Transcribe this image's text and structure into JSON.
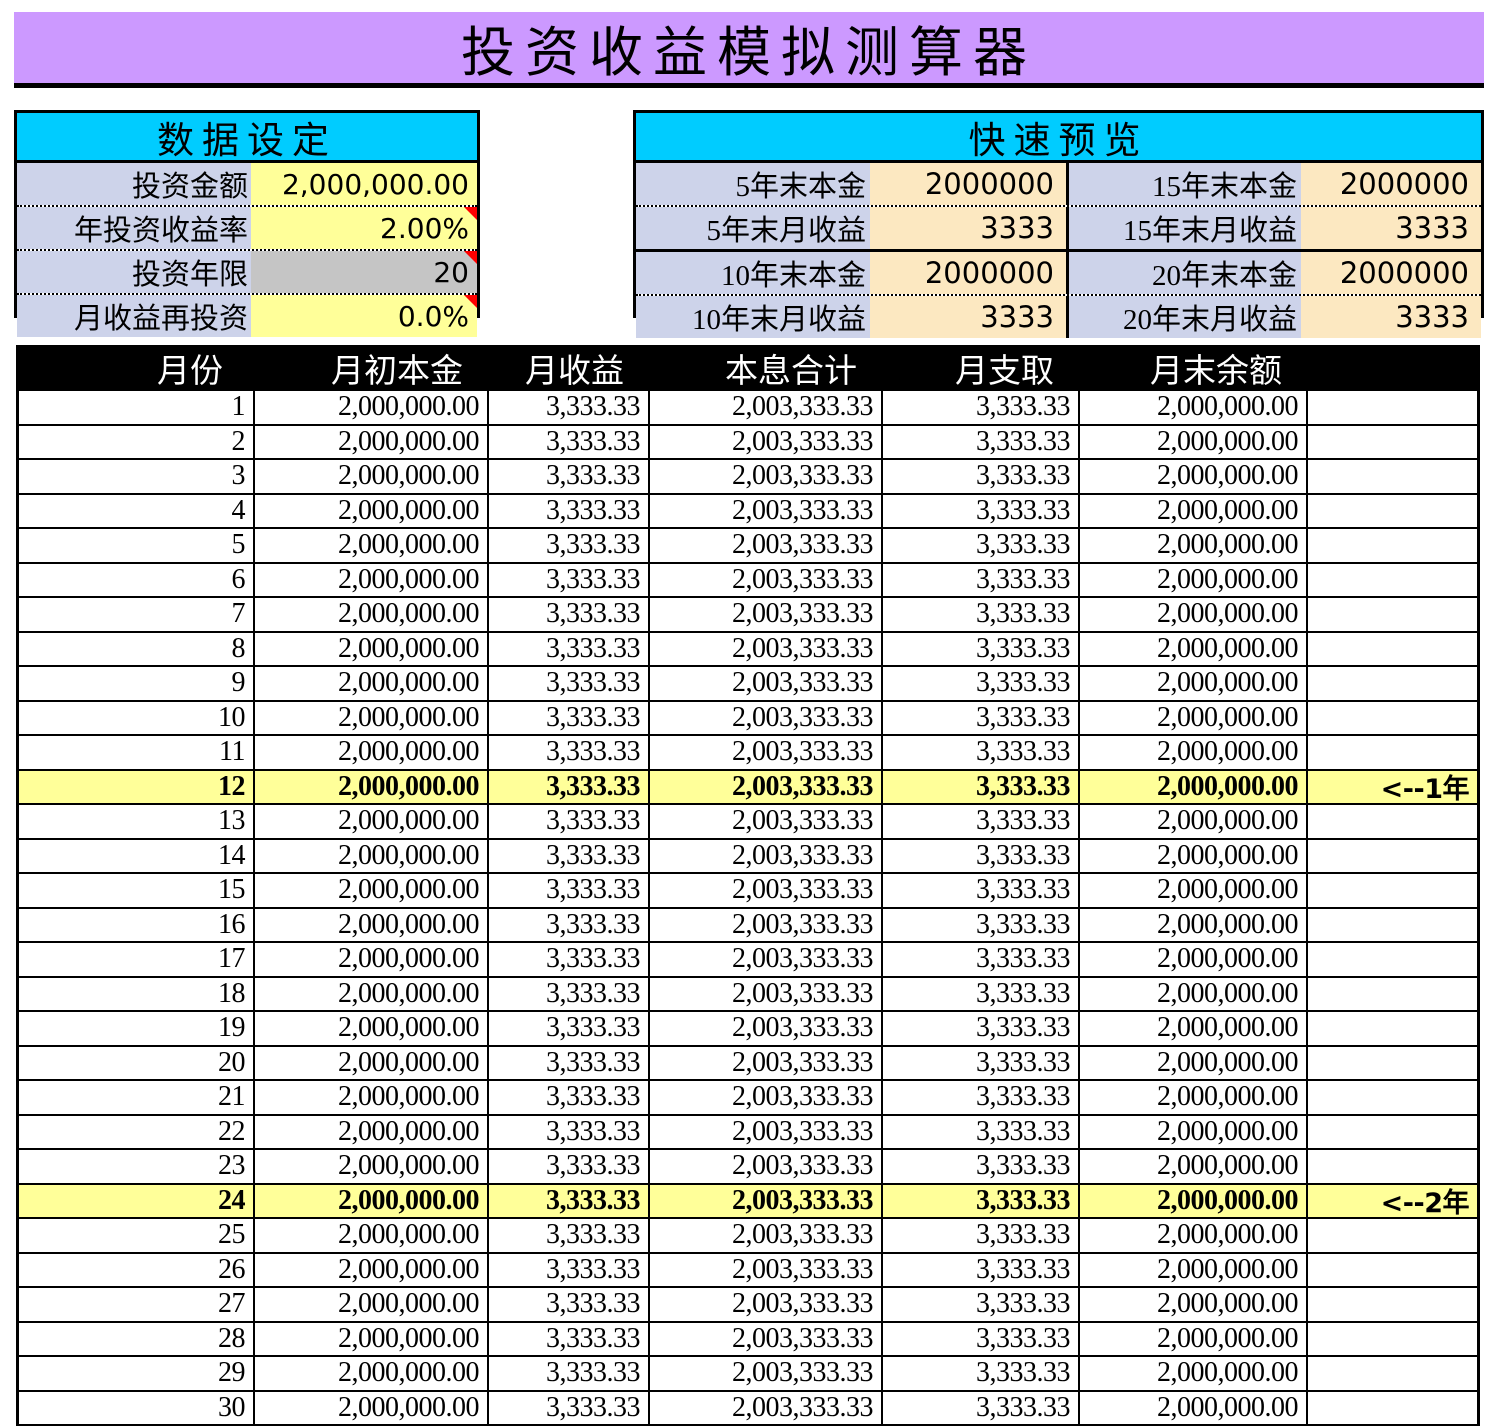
{
  "title": "投资收益模拟测算器",
  "colors": {
    "title_bg": "#CC99FF",
    "section_header_bg": "#00CCFF",
    "label_bg": "#CDD3EA",
    "input_yellow": "#FFFF99",
    "input_gray": "#C5C5C5",
    "preview_value_bg": "#FCE8C1",
    "highlight_row_bg": "#FFFF99",
    "comment_marker": "#FF0000",
    "table_header_bg": "#000000",
    "table_header_text": "#FFFFFF"
  },
  "settings": {
    "header": "数据设定",
    "rows": [
      {
        "label": "投资金额",
        "value": "2,000,000.00",
        "style": "yellow",
        "comment": false
      },
      {
        "label": "年投资收益率",
        "value": "2.00%",
        "style": "yellow",
        "comment": true
      },
      {
        "label": "投资年限",
        "value": "20",
        "style": "gray",
        "comment": true
      },
      {
        "label": "月收益再投资",
        "value": "0.0%",
        "style": "yellow",
        "comment": true
      }
    ]
  },
  "preview": {
    "header": "快速预览",
    "rows": [
      {
        "left": {
          "label": "5年末本金",
          "value": "2000000"
        },
        "right": {
          "label": "15年末本金",
          "value": "2000000"
        },
        "divider": "none"
      },
      {
        "left": {
          "label": "5年末月收益",
          "value": "3333"
        },
        "right": {
          "label": "15年末月收益",
          "value": "3333"
        },
        "divider": "dotted"
      },
      {
        "left": {
          "label": "10年末本金",
          "value": "2000000"
        },
        "right": {
          "label": "20年末本金",
          "value": "2000000"
        },
        "divider": "solid"
      },
      {
        "left": {
          "label": "10年末月收益",
          "value": "3333"
        },
        "right": {
          "label": "20年末月收益",
          "value": "3333"
        },
        "divider": "dotted"
      }
    ]
  },
  "table": {
    "columns": [
      "月份",
      "月初本金",
      "月收益",
      "本息合计",
      "月支取",
      "月末余额",
      ""
    ],
    "rows": [
      {
        "month": "1",
        "principal": "2,000,000.00",
        "income": "3,333.33",
        "total": "2,003,333.33",
        "withdraw": "3,333.33",
        "balance": "2,000,000.00",
        "note": "",
        "highlight": false
      },
      {
        "month": "2",
        "principal": "2,000,000.00",
        "income": "3,333.33",
        "total": "2,003,333.33",
        "withdraw": "3,333.33",
        "balance": "2,000,000.00",
        "note": "",
        "highlight": false
      },
      {
        "month": "3",
        "principal": "2,000,000.00",
        "income": "3,333.33",
        "total": "2,003,333.33",
        "withdraw": "3,333.33",
        "balance": "2,000,000.00",
        "note": "",
        "highlight": false
      },
      {
        "month": "4",
        "principal": "2,000,000.00",
        "income": "3,333.33",
        "total": "2,003,333.33",
        "withdraw": "3,333.33",
        "balance": "2,000,000.00",
        "note": "",
        "highlight": false
      },
      {
        "month": "5",
        "principal": "2,000,000.00",
        "income": "3,333.33",
        "total": "2,003,333.33",
        "withdraw": "3,333.33",
        "balance": "2,000,000.00",
        "note": "",
        "highlight": false
      },
      {
        "month": "6",
        "principal": "2,000,000.00",
        "income": "3,333.33",
        "total": "2,003,333.33",
        "withdraw": "3,333.33",
        "balance": "2,000,000.00",
        "note": "",
        "highlight": false
      },
      {
        "month": "7",
        "principal": "2,000,000.00",
        "income": "3,333.33",
        "total": "2,003,333.33",
        "withdraw": "3,333.33",
        "balance": "2,000,000.00",
        "note": "",
        "highlight": false
      },
      {
        "month": "8",
        "principal": "2,000,000.00",
        "income": "3,333.33",
        "total": "2,003,333.33",
        "withdraw": "3,333.33",
        "balance": "2,000,000.00",
        "note": "",
        "highlight": false
      },
      {
        "month": "9",
        "principal": "2,000,000.00",
        "income": "3,333.33",
        "total": "2,003,333.33",
        "withdraw": "3,333.33",
        "balance": "2,000,000.00",
        "note": "",
        "highlight": false
      },
      {
        "month": "10",
        "principal": "2,000,000.00",
        "income": "3,333.33",
        "total": "2,003,333.33",
        "withdraw": "3,333.33",
        "balance": "2,000,000.00",
        "note": "",
        "highlight": false
      },
      {
        "month": "11",
        "principal": "2,000,000.00",
        "income": "3,333.33",
        "total": "2,003,333.33",
        "withdraw": "3,333.33",
        "balance": "2,000,000.00",
        "note": "",
        "highlight": false
      },
      {
        "month": "12",
        "principal": "2,000,000.00",
        "income": "3,333.33",
        "total": "2,003,333.33",
        "withdraw": "3,333.33",
        "balance": "2,000,000.00",
        "note": "<--1年",
        "highlight": true
      },
      {
        "month": "13",
        "principal": "2,000,000.00",
        "income": "3,333.33",
        "total": "2,003,333.33",
        "withdraw": "3,333.33",
        "balance": "2,000,000.00",
        "note": "",
        "highlight": false
      },
      {
        "month": "14",
        "principal": "2,000,000.00",
        "income": "3,333.33",
        "total": "2,003,333.33",
        "withdraw": "3,333.33",
        "balance": "2,000,000.00",
        "note": "",
        "highlight": false
      },
      {
        "month": "15",
        "principal": "2,000,000.00",
        "income": "3,333.33",
        "total": "2,003,333.33",
        "withdraw": "3,333.33",
        "balance": "2,000,000.00",
        "note": "",
        "highlight": false
      },
      {
        "month": "16",
        "principal": "2,000,000.00",
        "income": "3,333.33",
        "total": "2,003,333.33",
        "withdraw": "3,333.33",
        "balance": "2,000,000.00",
        "note": "",
        "highlight": false
      },
      {
        "month": "17",
        "principal": "2,000,000.00",
        "income": "3,333.33",
        "total": "2,003,333.33",
        "withdraw": "3,333.33",
        "balance": "2,000,000.00",
        "note": "",
        "highlight": false
      },
      {
        "month": "18",
        "principal": "2,000,000.00",
        "income": "3,333.33",
        "total": "2,003,333.33",
        "withdraw": "3,333.33",
        "balance": "2,000,000.00",
        "note": "",
        "highlight": false
      },
      {
        "month": "19",
        "principal": "2,000,000.00",
        "income": "3,333.33",
        "total": "2,003,333.33",
        "withdraw": "3,333.33",
        "balance": "2,000,000.00",
        "note": "",
        "highlight": false
      },
      {
        "month": "20",
        "principal": "2,000,000.00",
        "income": "3,333.33",
        "total": "2,003,333.33",
        "withdraw": "3,333.33",
        "balance": "2,000,000.00",
        "note": "",
        "highlight": false
      },
      {
        "month": "21",
        "principal": "2,000,000.00",
        "income": "3,333.33",
        "total": "2,003,333.33",
        "withdraw": "3,333.33",
        "balance": "2,000,000.00",
        "note": "",
        "highlight": false
      },
      {
        "month": "22",
        "principal": "2,000,000.00",
        "income": "3,333.33",
        "total": "2,003,333.33",
        "withdraw": "3,333.33",
        "balance": "2,000,000.00",
        "note": "",
        "highlight": false
      },
      {
        "month": "23",
        "principal": "2,000,000.00",
        "income": "3,333.33",
        "total": "2,003,333.33",
        "withdraw": "3,333.33",
        "balance": "2,000,000.00",
        "note": "",
        "highlight": false
      },
      {
        "month": "24",
        "principal": "2,000,000.00",
        "income": "3,333.33",
        "total": "2,003,333.33",
        "withdraw": "3,333.33",
        "balance": "2,000,000.00",
        "note": "<--2年",
        "highlight": true
      },
      {
        "month": "25",
        "principal": "2,000,000.00",
        "income": "3,333.33",
        "total": "2,003,333.33",
        "withdraw": "3,333.33",
        "balance": "2,000,000.00",
        "note": "",
        "highlight": false
      },
      {
        "month": "26",
        "principal": "2,000,000.00",
        "income": "3,333.33",
        "total": "2,003,333.33",
        "withdraw": "3,333.33",
        "balance": "2,000,000.00",
        "note": "",
        "highlight": false
      },
      {
        "month": "27",
        "principal": "2,000,000.00",
        "income": "3,333.33",
        "total": "2,003,333.33",
        "withdraw": "3,333.33",
        "balance": "2,000,000.00",
        "note": "",
        "highlight": false
      },
      {
        "month": "28",
        "principal": "2,000,000.00",
        "income": "3,333.33",
        "total": "2,003,333.33",
        "withdraw": "3,333.33",
        "balance": "2,000,000.00",
        "note": "",
        "highlight": false
      },
      {
        "month": "29",
        "principal": "2,000,000.00",
        "income": "3,333.33",
        "total": "2,003,333.33",
        "withdraw": "3,333.33",
        "balance": "2,000,000.00",
        "note": "",
        "highlight": false
      },
      {
        "month": "30",
        "principal": "2,000,000.00",
        "income": "3,333.33",
        "total": "2,003,333.33",
        "withdraw": "3,333.33",
        "balance": "2,000,000.00",
        "note": "",
        "highlight": false
      }
    ]
  }
}
